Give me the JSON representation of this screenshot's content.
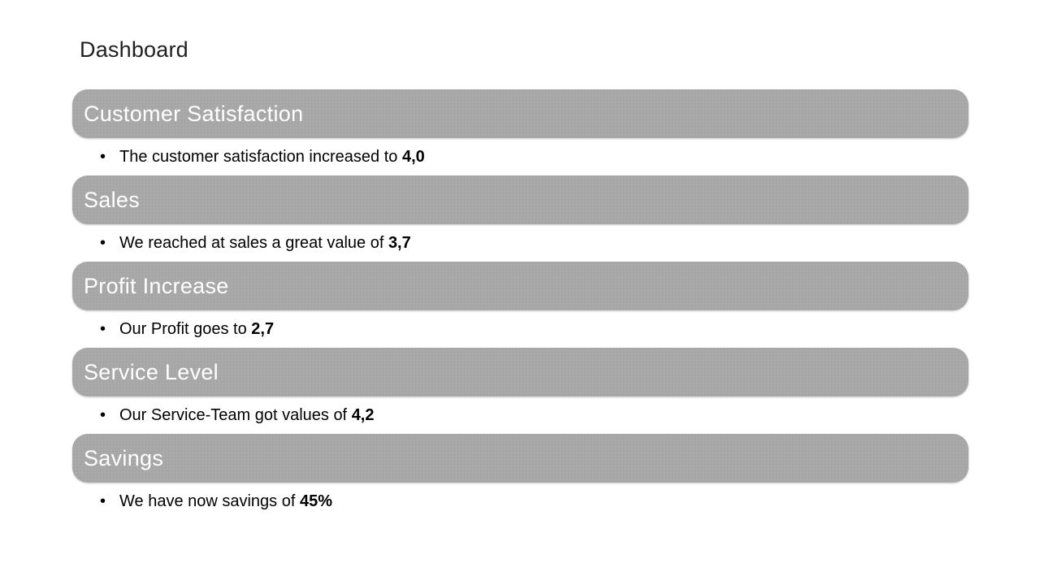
{
  "slide": {
    "title": "Dashboard",
    "bullet_char": "•",
    "colors": {
      "background": "#ffffff",
      "title_text": "#1f1f1f",
      "bar_fill": "#a8a8a8",
      "bar_text": "#ffffff",
      "body_text": "#000000"
    },
    "sections": [
      {
        "header": "Customer Satisfaction",
        "bullet_text": "The customer satisfaction increased to ",
        "bullet_value": "4,0"
      },
      {
        "header": "Sales",
        "bullet_text": "We reached at sales a great value of ",
        "bullet_value": "3,7"
      },
      {
        "header": "Profit Increase",
        "bullet_text": "Our Profit goes to ",
        "bullet_value": "2,7"
      },
      {
        "header": "Service Level",
        "bullet_text": "Our Service-Team got values of ",
        "bullet_value": "4,2"
      },
      {
        "header": "Savings",
        "bullet_text": "We have now savings of ",
        "bullet_value": "45%"
      }
    ]
  }
}
